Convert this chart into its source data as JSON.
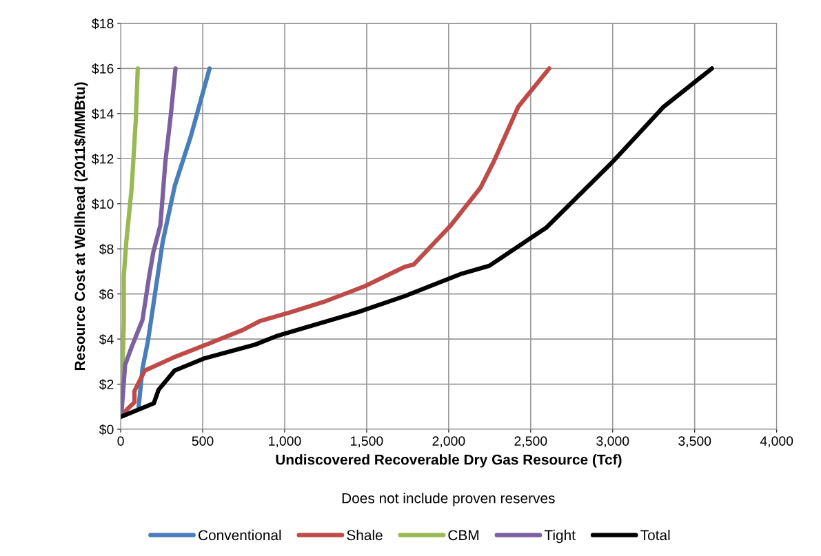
{
  "chart_data": {
    "type": "line",
    "xlabel": "Undiscovered Recoverable Dry Gas Resource (Tcf)",
    "ylabel": "Resource Cost at Wellhead (2011$/MMBtu)",
    "annotations": [
      "Does not include proven reserves"
    ],
    "xlim": [
      0,
      4000
    ],
    "xticks": [
      0,
      {
        "value": 500,
        "label": "500"
      },
      {
        "value": 1000,
        "label": "1,000"
      },
      {
        "value": 1500,
        "label": "1,500"
      },
      {
        "value": 2000,
        "label": "2,000"
      },
      {
        "value": 2500,
        "label": "2,500"
      },
      {
        "value": 3000,
        "label": "3,000"
      },
      {
        "value": 3500,
        "label": "3,500"
      },
      {
        "value": 4000,
        "label": "4,000"
      }
    ],
    "ylim": [
      0,
      18
    ],
    "yticks": [
      {
        "value": 0,
        "label": "$0"
      },
      {
        "value": 2,
        "label": "$2"
      },
      {
        "value": 4,
        "label": "$4"
      },
      {
        "value": 6,
        "label": "$6"
      },
      {
        "value": 8,
        "label": "$8"
      },
      {
        "value": 10,
        "label": "$10"
      },
      {
        "value": 12,
        "label": "$12"
      },
      {
        "value": 14,
        "label": "$14"
      },
      {
        "value": 16,
        "label": "$16"
      },
      {
        "value": 18,
        "label": "$18"
      }
    ],
    "grid": true,
    "legend": "bottom",
    "marker": "none",
    "line_style": "solid",
    "series": [
      {
        "name": "Conventional",
        "color": "#4a7ebb",
        "x": [
          109,
          133,
          166,
          207,
          256,
          330,
          428,
          542
        ],
        "values": [
          0.95,
          2.7,
          3.9,
          5.9,
          8.3,
          10.8,
          13.0,
          16.0
        ]
      },
      {
        "name": "Shale",
        "color": "#be4b48",
        "x": [
          21,
          84,
          84,
          147,
          328,
          538,
          744,
          849,
          1042,
          1239,
          1491,
          1731,
          1786,
          2008,
          2193,
          2277,
          2424,
          2613
        ],
        "values": [
          0.75,
          1.2,
          1.7,
          2.6,
          3.2,
          3.8,
          4.4,
          4.8,
          5.2,
          5.65,
          6.35,
          7.2,
          7.3,
          9.0,
          10.7,
          11.9,
          14.3,
          16.0
        ]
      },
      {
        "name": "CBM",
        "color": "#98b954",
        "x": [
          2,
          10,
          19,
          19,
          34,
          67,
          92,
          104
        ],
        "values": [
          0.7,
          2.35,
          4.7,
          6.8,
          8.3,
          10.7,
          13.7,
          16.0
        ]
      },
      {
        "name": "Tight",
        "color": "#7d60a0",
        "x": [
          5,
          27,
          67,
          133,
          174,
          199,
          242,
          273,
          305,
          334
        ],
        "values": [
          0.75,
          2.85,
          3.65,
          4.85,
          6.8,
          7.85,
          9.05,
          11.9,
          13.9,
          16.0
        ]
      },
      {
        "name": "Total",
        "color": "#000000",
        "x": [
          0,
          202,
          231,
          328,
          513,
          819,
          958,
          1168,
          1450,
          1731,
          2080,
          2248,
          2597,
          2992,
          3311,
          3605
        ],
        "values": [
          0.55,
          1.15,
          1.75,
          2.6,
          3.15,
          3.75,
          4.15,
          4.6,
          5.2,
          5.9,
          6.9,
          7.25,
          8.95,
          11.8,
          14.3,
          16.0
        ]
      }
    ]
  }
}
